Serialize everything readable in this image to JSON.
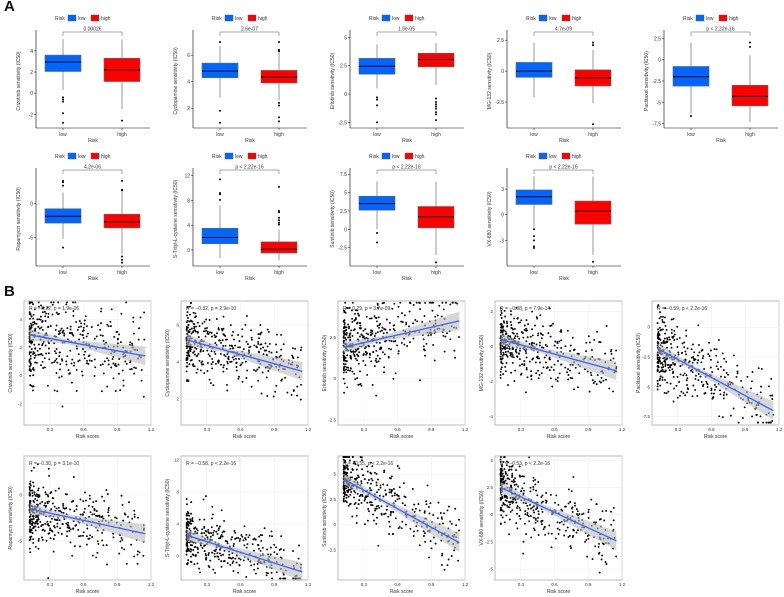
{
  "panel_labels": [
    "A",
    "B"
  ],
  "colors": {
    "low": "#0066ff",
    "high": "#ff0000",
    "line": "#3366ff",
    "band": "#bdbdbd"
  },
  "chart_data": {
    "boxplots": {
      "type": "box",
      "legend_title": "Risk",
      "groups": [
        "low",
        "high"
      ],
      "xlabel": "Risk",
      "panels": [
        {
          "ylabel": "Crizotinib sensitivity (IC50)",
          "p": "0.00026",
          "yticks": [
            -2,
            0,
            2,
            4
          ],
          "ylim": [
            -3.3,
            5.6
          ],
          "low": {
            "whisk": [
              0.3,
              5.1
            ],
            "q": [
              2.05,
              2.95,
              3.6
            ],
            "out": [
              -0.4,
              -0.6,
              -0.8,
              -1.9,
              -2.8
            ]
          },
          "high": {
            "whisk": [
              -1.5,
              5.1
            ],
            "q": [
              1.1,
              2.2,
              3.3
            ],
            "out": [
              -2.6
            ]
          }
        },
        {
          "ylabel": "Cyclopamine sensitivity (IC50)",
          "p": "2.6e-07",
          "yticks": [
            2,
            4,
            6
          ],
          "ylim": [
            0.5,
            7.6
          ],
          "low": {
            "whisk": [
              2.8,
              6.7
            ],
            "q": [
              4.3,
              4.8,
              5.4
            ],
            "out": [
              7.0,
              1.8,
              0.9
            ]
          },
          "high": {
            "whisk": [
              2.6,
              6.2
            ],
            "q": [
              3.9,
              4.35,
              4.85
            ],
            "out": [
              7.0,
              6.4,
              6.3,
              2.4,
              2.2,
              1.3,
              1.0
            ]
          }
        },
        {
          "ylabel": "Erlotinib sensitivity (IC50)",
          "p": "1.9e-05",
          "yticks": [
            -2.5,
            0,
            2.5,
            5
          ],
          "ylim": [
            -3,
            5.3
          ],
          "low": {
            "whisk": [
              0.5,
              4.4
            ],
            "q": [
              1.75,
              2.45,
              3.15
            ],
            "out": [
              -0.3,
              -0.5,
              -1.0,
              -2.5
            ]
          },
          "high": {
            "whisk": [
              0.8,
              4.5
            ],
            "q": [
              2.4,
              3.05,
              3.6
            ],
            "out": [
              -0.4,
              -0.7,
              -0.9,
              -1.1,
              -1.3,
              -1.6,
              -1.8,
              -2.3
            ]
          }
        },
        {
          "ylabel": "MG-132 sensitivity (IC50)",
          "p": "4.7e-09",
          "yticks": [
            -2.5,
            0,
            2.5
          ],
          "ylim": [
            -4.6,
            3
          ],
          "low": {
            "whisk": [
              -2.1,
              2.3
            ],
            "q": [
              -0.5,
              0,
              0.7
            ],
            "out": []
          },
          "high": {
            "whisk": [
              -2.6,
              1.7
            ],
            "q": [
              -1.2,
              -0.55,
              0.1
            ],
            "out": [
              2.3,
              2.1,
              -4.3
            ]
          }
        },
        {
          "ylabel": "Paclitaxel sensitivity (IC50)",
          "p": "p < 2.22e-16",
          "yticks": [
            -7.5,
            -5,
            -2.5,
            0,
            2.5
          ],
          "ylim": [
            -8,
            3
          ],
          "low": {
            "whisk": [
              -6.3,
              2.0
            ],
            "q": [
              -3.1,
              -2.0,
              -0.8
            ],
            "out": [
              -6.6
            ]
          },
          "high": {
            "whisk": [
              -7.3,
              0.5
            ],
            "q": [
              -5.4,
              -4.3,
              -3.0
            ],
            "out": [
              2.0,
              1.5
            ]
          }
        },
        {
          "ylabel": "Rapamycin sensitivity (IC50)",
          "p": "4.2e-06",
          "yticks": [
            -5,
            0
          ],
          "ylim": [
            -9.2,
            4.6
          ],
          "low": {
            "whisk": [
              -5.2,
              1.6
            ],
            "q": [
              -2.9,
              -1.9,
              -0.8
            ],
            "out": [
              3.3,
              3.1,
              2.6,
              -6.5
            ]
          },
          "high": {
            "whisk": [
              -7.5,
              1.7
            ],
            "q": [
              -3.6,
              -2.7,
              -1.6
            ],
            "out": [
              3.3,
              2.0,
              1.9,
              -7.8,
              -8.3,
              -8.7
            ]
          }
        },
        {
          "ylabel": "S-Trityl-L-cysteine sensitivity (IC50)",
          "p": "p < 2.22e-16",
          "yticks": [
            0,
            4,
            8,
            12
          ],
          "ylim": [
            -2.6,
            12.6
          ],
          "low": {
            "whisk": [
              -1.3,
              7.2
            ],
            "q": [
              1.0,
              2.0,
              3.5
            ],
            "out": [
              11.4,
              9.2,
              9.0,
              8.1
            ]
          },
          "high": {
            "whisk": [
              -1.7,
              3.3
            ],
            "q": [
              -0.5,
              0.1,
              1.3
            ],
            "out": [
              10.2,
              6.3,
              6.1,
              5.2,
              4.8,
              4.4,
              4.1
            ]
          }
        },
        {
          "ylabel": "Sunitinib sensitivity (IC50)",
          "p": "p < 2.22e-16",
          "yticks": [
            -2.5,
            0,
            2.5,
            5,
            7.5
          ],
          "ylim": [
            -5,
            7.8
          ],
          "low": {
            "whisk": [
              0,
              6.5
            ],
            "q": [
              2.6,
              3.5,
              4.5
            ],
            "out": [
              -0.5,
              -1.8
            ]
          },
          "high": {
            "whisk": [
              -3.5,
              6.5
            ],
            "q": [
              0.2,
              1.7,
              3.1
            ],
            "out": [
              -4.5
            ]
          }
        },
        {
          "ylabel": "VX-680 sensitivity (IC50)",
          "p": "p < 2.22e-16",
          "yticks": [
            -3,
            0,
            3
          ],
          "ylim": [
            -6,
            5
          ],
          "low": {
            "whisk": [
              -1.5,
              4.5
            ],
            "q": [
              1.2,
              2.1,
              2.9
            ],
            "out": [
              -1.7,
              -2.5,
              -3.0,
              -3.7,
              -3.9
            ]
          },
          "high": {
            "whisk": [
              -4.7,
              4.5
            ],
            "q": [
              -1.1,
              0.4,
              1.6
            ],
            "out": [
              -5.5
            ]
          }
        }
      ]
    },
    "scatter": {
      "type": "scatter",
      "xlabel": "Risk score",
      "xticks": [
        0.3,
        0.6,
        0.9,
        1.2
      ],
      "xlim": [
        0.07,
        1.2
      ],
      "n_points": 400,
      "panels": [
        {
          "ylabel": "Crizotinib sensitivity (IC50)",
          "stat": "R = −0.22, p = 1.9e-06",
          "yticks": [
            -2,
            0,
            2,
            4
          ],
          "ylim": [
            -3.5,
            5.3
          ],
          "fit": [
            2.9,
            1.4
          ],
          "sd": 1.5
        },
        {
          "ylabel": "Cyclopamine sensitivity (IC50)",
          "stat": "R = −0.32, p = 2.9e-10",
          "yticks": [
            2,
            4,
            6
          ],
          "ylim": [
            0.6,
            7.3
          ],
          "fit": [
            5.2,
            3.5
          ],
          "sd": 0.9
        },
        {
          "ylabel": "Erlotinib sensitivity (IC50)",
          "stat": "R = 0.29, p = 3.7e-09",
          "yticks": [
            -2.5,
            0,
            2.5
          ],
          "ylim": [
            -2.8,
            4.7
          ],
          "fit": [
            1.9,
            3.5
          ],
          "sd": 1.1
        },
        {
          "ylabel": "MG-132 sensitivity (IC50)",
          "stat": "R = −0.38, p = 7.9e-14",
          "yticks": [
            -4,
            -2,
            0,
            2
          ],
          "ylim": [
            -4.5,
            2.6
          ],
          "fit": [
            0.4,
            -1.4
          ],
          "sd": 0.9
        },
        {
          "ylabel": "Paclitaxel sensitivity (IC50)",
          "stat": "R = −0.59, p < 2.2e-16",
          "yticks": [
            -7.5,
            -5,
            -2.5,
            0
          ],
          "ylim": [
            -8.2,
            2.2
          ],
          "fit": [
            -1.8,
            -7.0
          ],
          "sd": 1.6
        },
        {
          "ylabel": "Rapamycin sensitivity (IC50)",
          "stat": "R = −0.30, p = 3.1e-10",
          "yticks": [
            -5,
            0
          ],
          "ylim": [
            -9.2,
            4.2
          ],
          "fit": [
            -1.5,
            -4.2
          ],
          "sd": 1.7
        },
        {
          "ylabel": "S-Trityl-L-cysteine sensitivity (IC50)",
          "stat": "R = −0.58, p < 2.2e-16",
          "yticks": [
            0,
            4,
            8,
            12
          ],
          "ylim": [
            -3,
            12.5
          ],
          "fit": [
            2.6,
            -2.0
          ],
          "sd": 1.7
        },
        {
          "ylabel": "Sunitinib sensitivity (IC50)",
          "stat": "R = −0.55, p < 2.2e-16",
          "yticks": [
            -2.5,
            0,
            2.5,
            5
          ],
          "ylim": [
            -5.5,
            6.8
          ],
          "fit": [
            4.5,
            -1.8
          ],
          "sd": 1.6
        },
        {
          "ylabel": "VX-680 sensitivity (IC50)",
          "stat": "R = −0.53, p < 2.2e-16",
          "yticks": [
            -5,
            -2.5,
            0,
            2.5,
            5
          ],
          "ylim": [
            -6,
            5.4
          ],
          "fit": [
            2.5,
            -2.4
          ],
          "sd": 1.5
        }
      ]
    }
  }
}
